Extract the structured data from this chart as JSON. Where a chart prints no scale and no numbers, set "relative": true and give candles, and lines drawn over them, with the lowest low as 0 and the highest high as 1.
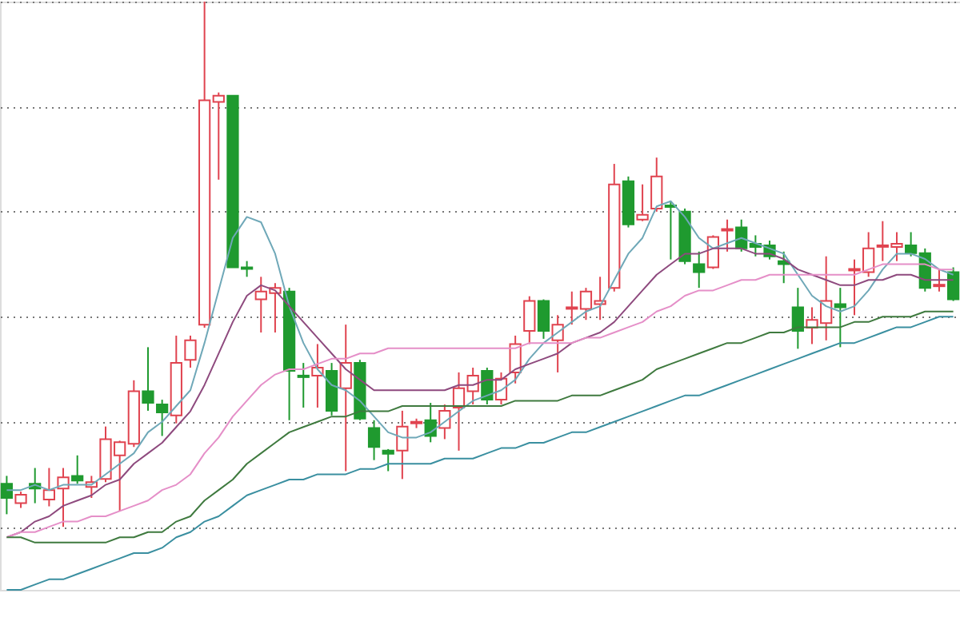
{
  "chart_data": {
    "type": "candlestick",
    "relative": true,
    "grid": "y",
    "tick_labels": false,
    "categories": [
      null,
      null,
      null,
      null,
      null,
      null,
      null,
      null,
      null,
      null,
      null,
      null,
      null,
      null,
      null,
      null,
      null,
      null,
      null,
      null,
      null,
      null,
      null,
      null,
      null,
      null,
      null,
      null,
      null,
      null,
      null,
      null,
      null,
      null,
      null,
      null,
      null,
      null,
      null,
      null,
      null,
      null,
      null,
      null,
      null,
      null,
      null,
      null,
      null,
      null,
      null,
      null,
      null,
      null,
      null,
      null,
      null,
      null,
      null,
      null,
      null,
      null,
      null,
      null,
      null,
      null,
      null,
      null
    ],
    "ohlc": [
      [
        0.082,
        0.097,
        0.024,
        0.055
      ],
      [
        0.045,
        0.067,
        0.036,
        0.061
      ],
      [
        0.082,
        0.112,
        0.045,
        0.073
      ],
      [
        0.052,
        0.112,
        0.039,
        0.07
      ],
      [
        0.073,
        0.112,
        0,
        0.094
      ],
      [
        0.097,
        0.136,
        0.082,
        0.088
      ],
      [
        0.076,
        0.097,
        0.055,
        0.085
      ],
      [
        0.091,
        0.191,
        0.085,
        0.167
      ],
      [
        0.136,
        0.164,
        0.03,
        0.161
      ],
      [
        0.158,
        0.279,
        0.152,
        0.258
      ],
      [
        0.258,
        0.342,
        0.221,
        0.236
      ],
      [
        0.233,
        0.242,
        0.173,
        0.218
      ],
      [
        0.212,
        0.364,
        0.197,
        0.312
      ],
      [
        0.318,
        0.364,
        0.303,
        0.355
      ],
      [
        0.385,
        1,
        0.379,
        0.812
      ],
      [
        0.809,
        0.827,
        0.661,
        0.821
      ],
      [
        0.821,
        0.821,
        0.494,
        0.494
      ],
      [
        0.494,
        0.506,
        0.476,
        0.491
      ],
      [
        0.433,
        0.476,
        0.37,
        0.448
      ],
      [
        0.445,
        0.464,
        0.37,
        0.455
      ],
      [
        0.448,
        0.455,
        0.203,
        0.297
      ],
      [
        0.288,
        0.312,
        0.227,
        0.285
      ],
      [
        0.288,
        0.348,
        0.227,
        0.303
      ],
      [
        0.297,
        0.312,
        0.212,
        0.221
      ],
      [
        0.264,
        0.385,
        0.106,
        0.312
      ],
      [
        0.312,
        0.318,
        0.203,
        0.206
      ],
      [
        0.188,
        0.203,
        0.127,
        0.152
      ],
      [
        0.145,
        0.148,
        0.106,
        0.139
      ],
      [
        0.145,
        0.221,
        0.091,
        0.191
      ],
      [
        0.197,
        0.206,
        0.188,
        0.2
      ],
      [
        0.203,
        0.236,
        0.161,
        0.173
      ],
      [
        0.188,
        0.233,
        0.167,
        0.221
      ],
      [
        0.227,
        0.294,
        0.145,
        0.264
      ],
      [
        0.258,
        0.303,
        0.233,
        0.288
      ],
      [
        0.297,
        0.303,
        0.233,
        0.242
      ],
      [
        0.242,
        0.294,
        0.233,
        0.282
      ],
      [
        0.294,
        0.364,
        0.273,
        0.348
      ],
      [
        0.373,
        0.439,
        0.348,
        0.43
      ],
      [
        0.43,
        0.433,
        0.358,
        0.373
      ],
      [
        0.355,
        0.403,
        0.294,
        0.385
      ],
      [
        0.415,
        0.448,
        0.385,
        0.418
      ],
      [
        0.415,
        0.455,
        0.394,
        0.448
      ],
      [
        0.424,
        0.476,
        0.394,
        0.43
      ],
      [
        0.455,
        0.691,
        0.448,
        0.652
      ],
      [
        0.658,
        0.667,
        0.57,
        0.576
      ],
      [
        0.585,
        0.652,
        0.582,
        0.594
      ],
      [
        0.606,
        0.703,
        0.6,
        0.667
      ],
      [
        0.612,
        0.618,
        0.509,
        0.609
      ],
      [
        0.6,
        0.606,
        0.5,
        0.506
      ],
      [
        0.5,
        0.524,
        0.455,
        0.485
      ],
      [
        0.494,
        0.555,
        0.491,
        0.552
      ],
      [
        0.564,
        0.585,
        0.524,
        0.567
      ],
      [
        0.57,
        0.585,
        0.524,
        0.53
      ],
      [
        0.539,
        0.555,
        0.515,
        0.533
      ],
      [
        0.536,
        0.545,
        0.509,
        0.515
      ],
      [
        0.506,
        0.524,
        0.464,
        0.5
      ],
      [
        0.418,
        0.455,
        0.339,
        0.373
      ],
      [
        0.379,
        0.418,
        0.348,
        0.394
      ],
      [
        0.388,
        0.515,
        0.355,
        0.43
      ],
      [
        0.424,
        0.455,
        0.342,
        0.418
      ],
      [
        0.488,
        0.509,
        0.403,
        0.491
      ],
      [
        0.485,
        0.561,
        0.476,
        0.53
      ],
      [
        0.533,
        0.582,
        0.506,
        0.536
      ],
      [
        0.533,
        0.561,
        0.506,
        0.539
      ],
      [
        0.536,
        0.561,
        0.515,
        0.521
      ],
      [
        0.521,
        0.53,
        0.448,
        0.455
      ],
      [
        0.458,
        0.491,
        0.448,
        0.461
      ],
      [
        0.485,
        0.494,
        0.43,
        0.433
      ]
    ],
    "colors": [
      "#1f9a2f",
      "#e0434f",
      "#1f9a2f",
      "#e0434f",
      "#e0434f",
      "#1f9a2f",
      "#e0434f",
      "#e0434f",
      "#e0434f",
      "#e0434f",
      "#1f9a2f",
      "#1f9a2f",
      "#e0434f",
      "#e0434f",
      "#e0434f",
      "#e0434f",
      "#1f9a2f",
      "#1f9a2f",
      "#e0434f",
      "#e0434f",
      "#1f9a2f",
      "#1f9a2f",
      "#e0434f",
      "#1f9a2f",
      "#e0434f",
      "#1f9a2f",
      "#1f9a2f",
      "#1f9a2f",
      "#e0434f",
      "#e0434f",
      "#1f9a2f",
      "#e0434f",
      "#e0434f",
      "#e0434f",
      "#1f9a2f",
      "#e0434f",
      "#e0434f",
      "#e0434f",
      "#1f9a2f",
      "#e0434f",
      "#e0434f",
      "#e0434f",
      "#e0434f",
      "#e0434f",
      "#1f9a2f",
      "#e0434f",
      "#e0434f",
      "#1f9a2f",
      "#1f9a2f",
      "#1f9a2f",
      "#e0434f",
      "#e0434f",
      "#1f9a2f",
      "#1f9a2f",
      "#1f9a2f",
      "#1f9a2f",
      "#1f9a2f",
      "#e0434f",
      "#e0434f",
      "#1f9a2f",
      "#e0434f",
      "#e0434f",
      "#e0434f",
      "#e0434f",
      "#1f9a2f",
      "#1f9a2f",
      "#e0434f",
      "#1f9a2f"
    ],
    "series": [
      {
        "type": "line",
        "color": "#6fa8b8",
        "values": [
          0.07,
          0.07,
          0.08,
          0.07,
          0.08,
          0.08,
          0.08,
          0.1,
          0.12,
          0.14,
          0.18,
          0.2,
          0.23,
          0.26,
          0.35,
          0.45,
          0.55,
          0.59,
          0.58,
          0.52,
          0.42,
          0.35,
          0.3,
          0.27,
          0.26,
          0.24,
          0.21,
          0.18,
          0.17,
          0.17,
          0.18,
          0.2,
          0.22,
          0.24,
          0.25,
          0.26,
          0.28,
          0.32,
          0.35,
          0.37,
          0.39,
          0.41,
          0.42,
          0.47,
          0.52,
          0.55,
          0.61,
          0.62,
          0.59,
          0.55,
          0.53,
          0.54,
          0.55,
          0.54,
          0.53,
          0.52,
          0.48,
          0.44,
          0.42,
          0.41,
          0.42,
          0.45,
          0.49,
          0.52,
          0.52,
          0.51,
          0.49,
          0.48
        ]
      },
      {
        "type": "line",
        "color": "#8e4a7e",
        "values": [
          -0.02,
          -0.01,
          0.01,
          0.02,
          0.04,
          0.05,
          0.06,
          0.08,
          0.09,
          0.12,
          0.14,
          0.16,
          0.19,
          0.22,
          0.27,
          0.33,
          0.39,
          0.44,
          0.46,
          0.45,
          0.42,
          0.39,
          0.36,
          0.33,
          0.3,
          0.28,
          0.26,
          0.26,
          0.26,
          0.26,
          0.26,
          0.26,
          0.27,
          0.27,
          0.28,
          0.28,
          0.3,
          0.31,
          0.32,
          0.33,
          0.35,
          0.36,
          0.37,
          0.39,
          0.42,
          0.45,
          0.48,
          0.5,
          0.52,
          0.52,
          0.53,
          0.53,
          0.53,
          0.52,
          0.52,
          0.51,
          0.49,
          0.48,
          0.47,
          0.46,
          0.46,
          0.47,
          0.47,
          0.48,
          0.48,
          0.47,
          0.47,
          0.47
        ]
      },
      {
        "type": "line",
        "color": "#e58fc8",
        "values": [
          -0.02,
          -0.01,
          -0.01,
          0,
          0.01,
          0.01,
          0.02,
          0.02,
          0.03,
          0.04,
          0.05,
          0.07,
          0.08,
          0.1,
          0.14,
          0.17,
          0.21,
          0.24,
          0.27,
          0.29,
          0.3,
          0.3,
          0.31,
          0.32,
          0.32,
          0.33,
          0.33,
          0.34,
          0.34,
          0.34,
          0.34,
          0.34,
          0.34,
          0.34,
          0.34,
          0.34,
          0.34,
          0.35,
          0.35,
          0.35,
          0.35,
          0.36,
          0.36,
          0.37,
          0.38,
          0.39,
          0.41,
          0.42,
          0.44,
          0.45,
          0.45,
          0.46,
          0.47,
          0.47,
          0.48,
          0.48,
          0.48,
          0.48,
          0.48,
          0.48,
          0.48,
          0.49,
          0.5,
          0.5,
          0.5,
          0.5,
          0.49,
          0.49
        ]
      },
      {
        "type": "line",
        "color": "#3f7a3f",
        "values": [
          -0.02,
          -0.02,
          -0.03,
          -0.03,
          -0.03,
          -0.03,
          -0.03,
          -0.03,
          -0.02,
          -0.02,
          -0.01,
          -0.01,
          0.01,
          0.02,
          0.05,
          0.07,
          0.09,
          0.12,
          0.14,
          0.16,
          0.18,
          0.19,
          0.2,
          0.21,
          0.21,
          0.22,
          0.22,
          0.22,
          0.23,
          0.23,
          0.23,
          0.23,
          0.23,
          0.23,
          0.23,
          0.23,
          0.24,
          0.24,
          0.24,
          0.24,
          0.25,
          0.25,
          0.25,
          0.26,
          0.27,
          0.28,
          0.3,
          0.31,
          0.32,
          0.33,
          0.34,
          0.35,
          0.35,
          0.36,
          0.37,
          0.37,
          0.38,
          0.38,
          0.38,
          0.38,
          0.39,
          0.39,
          0.4,
          0.4,
          0.4,
          0.41,
          0.41,
          0.41
        ]
      },
      {
        "type": "line",
        "color": "#3a8fa0",
        "values": [
          -0.12,
          -0.12,
          -0.11,
          -0.1,
          -0.1,
          -0.09,
          -0.08,
          -0.07,
          -0.06,
          -0.05,
          -0.05,
          -0.04,
          -0.02,
          -0.01,
          0.01,
          0.02,
          0.04,
          0.06,
          0.07,
          0.08,
          0.09,
          0.09,
          0.1,
          0.1,
          0.1,
          0.11,
          0.11,
          0.12,
          0.12,
          0.12,
          0.12,
          0.13,
          0.13,
          0.13,
          0.14,
          0.15,
          0.15,
          0.16,
          0.16,
          0.17,
          0.18,
          0.18,
          0.19,
          0.2,
          0.21,
          0.22,
          0.23,
          0.24,
          0.25,
          0.25,
          0.26,
          0.27,
          0.28,
          0.29,
          0.3,
          0.31,
          0.32,
          0.33,
          0.34,
          0.35,
          0.35,
          0.36,
          0.37,
          0.38,
          0.38,
          0.39,
          0.4,
          0.4
        ]
      }
    ]
  }
}
